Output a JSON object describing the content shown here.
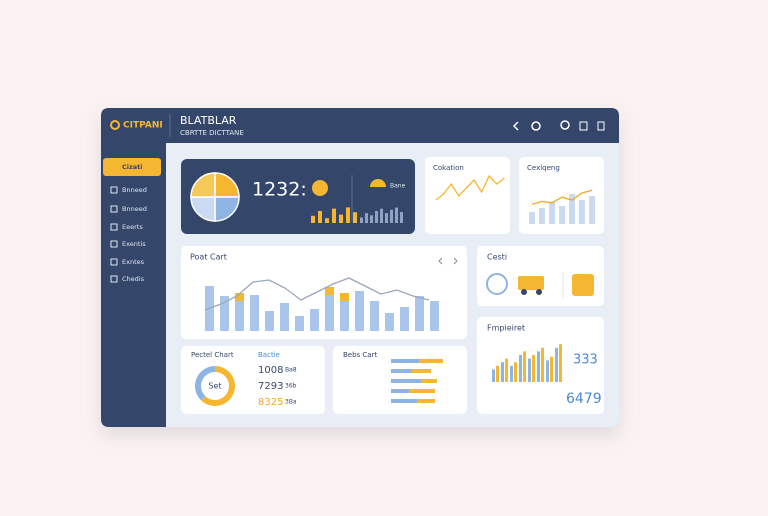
{
  "header": {
    "logo": "CITPANI",
    "title": "BLATBLAR",
    "subtitle": "CBRTTE DICTTANE"
  },
  "sidebar": {
    "items": [
      "Cizati",
      "Bnneed",
      "Bnneed",
      "Eeerts",
      "Exentis",
      "Exntes",
      "Chedis"
    ]
  },
  "hero": {
    "value": "1232:",
    "label": "Bane",
    "pie": [
      25,
      25,
      25,
      25
    ],
    "pie_colors": [
      "#f5b731",
      "#8fb4e3",
      "#c9daf2",
      "#f5c85a"
    ],
    "bars_left": [
      6,
      10,
      4,
      12,
      7,
      13,
      9
    ],
    "bars_right": [
      5,
      9,
      7,
      11,
      13,
      9,
      12,
      14,
      10
    ]
  },
  "cokation": {
    "title": "Cokation",
    "line": [
      14,
      20,
      30,
      18,
      26,
      34,
      22,
      38,
      30,
      36
    ]
  },
  "cexlqeng": {
    "title": "Cexlqeng",
    "bars": [
      12,
      16,
      22,
      18,
      30,
      24,
      28
    ],
    "line": [
      14,
      18,
      16,
      24,
      20,
      30,
      34
    ]
  },
  "poat": {
    "title": "Poat Cart",
    "series": [
      {
        "color": "#a9c6ea",
        "values": [
          45,
          35,
          30,
          36,
          20,
          28,
          15,
          22,
          36,
          30,
          40,
          30,
          18,
          24,
          35,
          30
        ]
      },
      {
        "color": "#f5b731",
        "values": [
          0,
          0,
          8,
          0,
          0,
          0,
          0,
          0,
          8,
          8,
          0,
          0,
          0,
          0,
          0,
          0
        ]
      }
    ],
    "line": [
      20,
      26,
      34,
      48,
      50,
      42,
      30,
      38,
      46,
      52,
      44,
      36,
      40,
      34,
      30
    ]
  },
  "cesti": {
    "title": "Cesti"
  },
  "pectel": {
    "title": "Pectel Chart",
    "center": "Set",
    "header": "Bactie",
    "donut": [
      62,
      38
    ],
    "donut_colors": [
      "#f5b731",
      "#8fb4e3"
    ],
    "rows": [
      [
        "1008",
        "Ba8"
      ],
      [
        "7293",
        "36b"
      ],
      [
        "8325",
        "3Ba"
      ]
    ]
  },
  "bebs": {
    "title": "Bebs Cart",
    "rows": [
      [
        28,
        24
      ],
      [
        20,
        20
      ],
      [
        30,
        16
      ],
      [
        18,
        26
      ],
      [
        26,
        18
      ]
    ]
  },
  "fmp": {
    "title": "Fmpieiret",
    "big1": "333",
    "big2": "6479",
    "blue": [
      14,
      22,
      18,
      30,
      26,
      34,
      24,
      38
    ],
    "yellow": [
      18,
      26,
      22,
      34,
      30,
      38,
      28,
      42
    ]
  }
}
